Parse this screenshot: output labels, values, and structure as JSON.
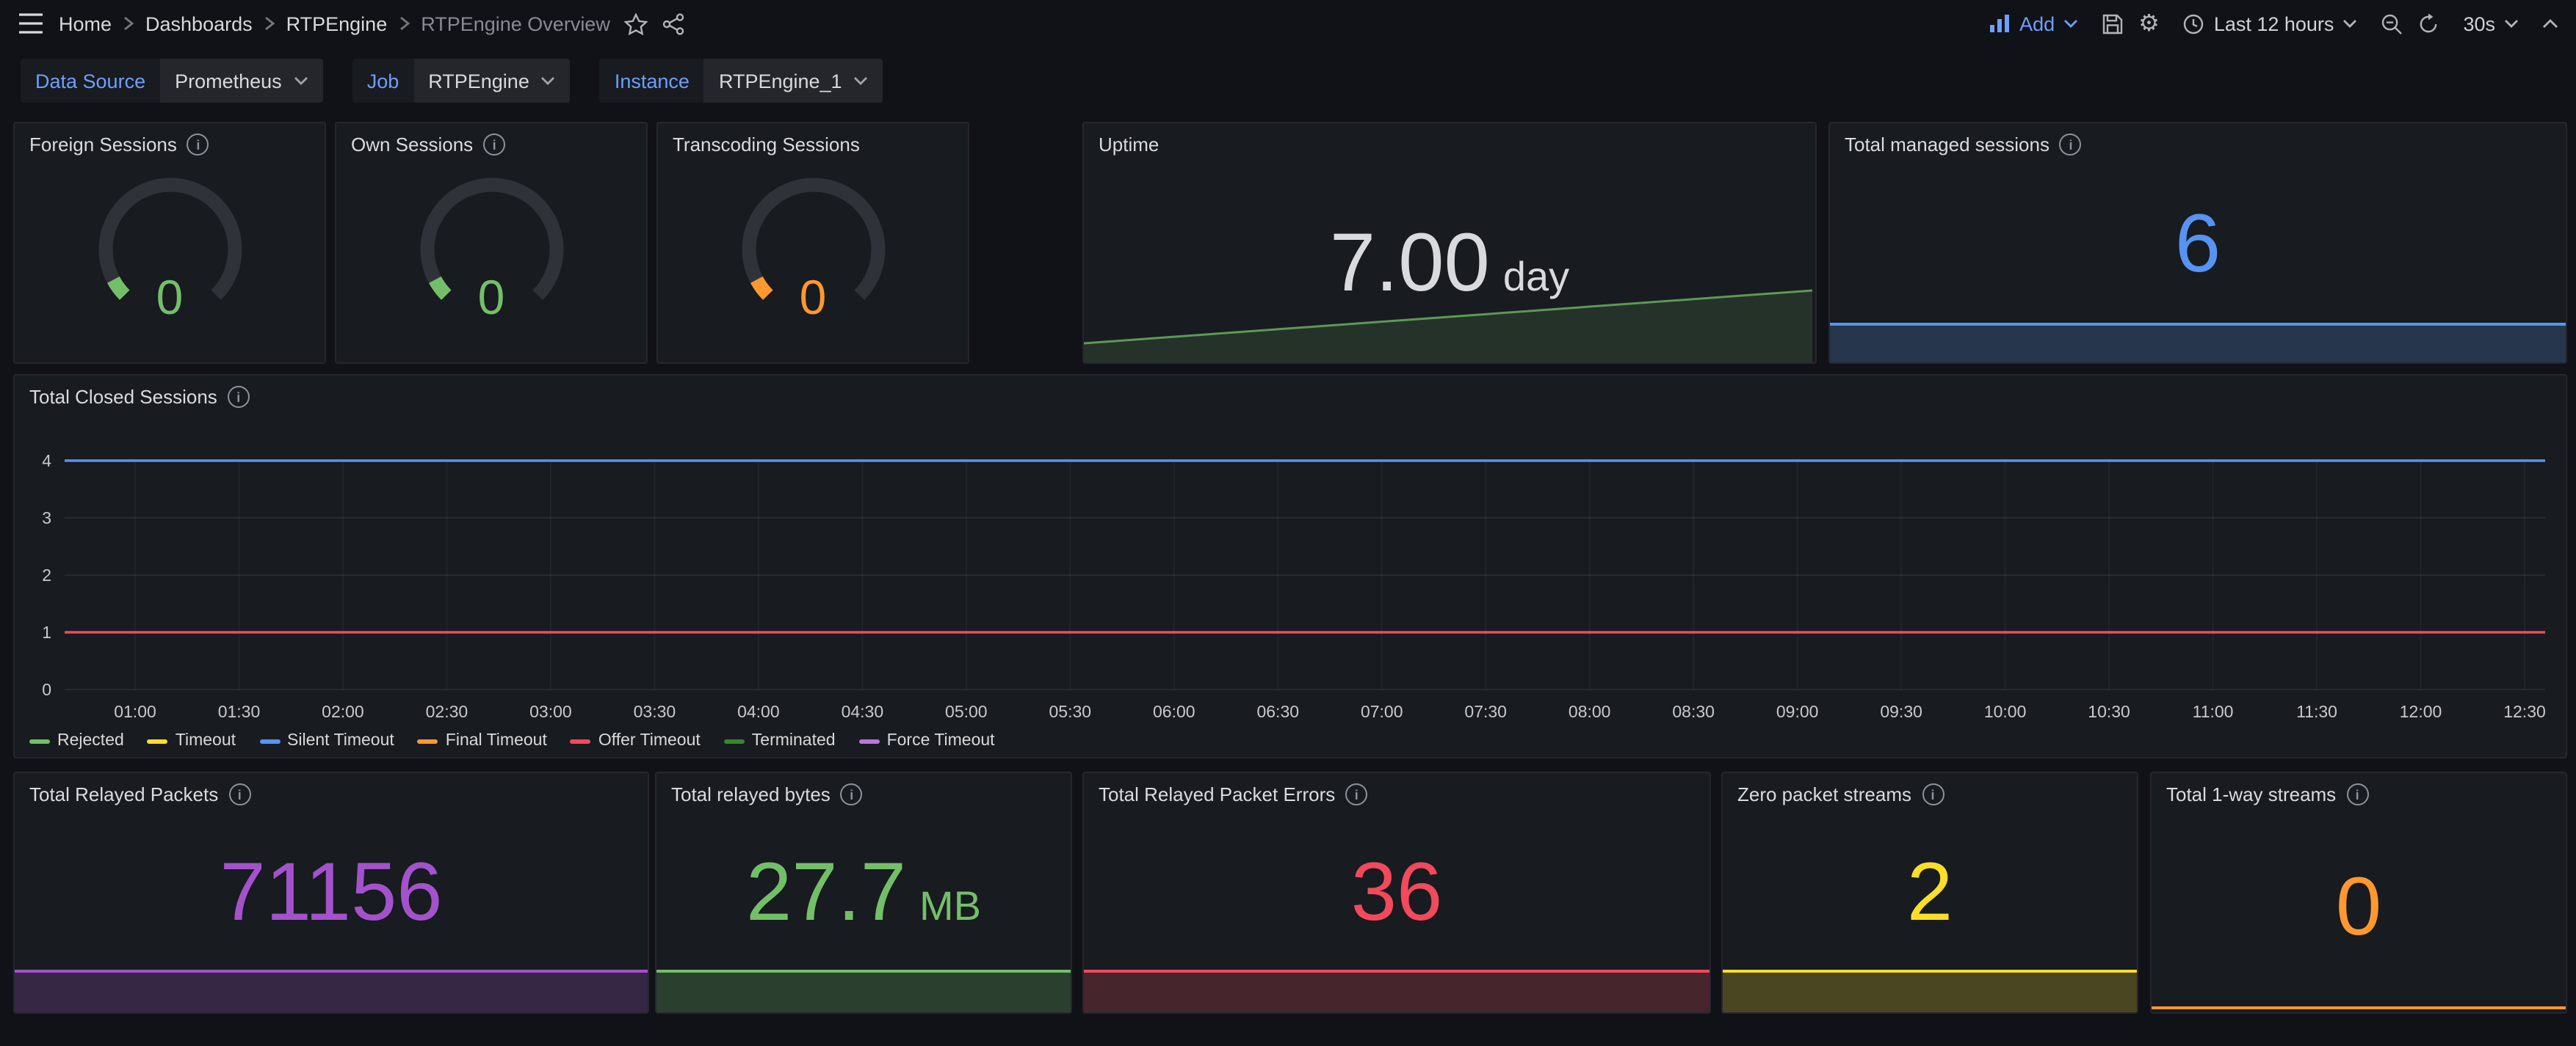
{
  "colors": {
    "accent": "#6e9fff",
    "page_bg": "#111217",
    "panel_bg": "#181b1f"
  },
  "topnav": {
    "breadcrumbs": [
      {
        "label": "Home"
      },
      {
        "label": "Dashboards"
      },
      {
        "label": "RTPEngine"
      },
      {
        "label": "RTPEngine Overview"
      }
    ],
    "add_label": "Add",
    "time_range": "Last 12 hours",
    "refresh_interval": "30s"
  },
  "filters": [
    {
      "label": "Data Source",
      "value": "Prometheus"
    },
    {
      "label": "Job",
      "value": "RTPEngine"
    },
    {
      "label": "Instance",
      "value": "RTPEngine_1"
    }
  ],
  "stat_panels": {
    "foreign_sessions": {
      "title": "Foreign Sessions",
      "value": "0",
      "color": "#73bf69"
    },
    "own_sessions": {
      "title": "Own Sessions",
      "value": "0",
      "color": "#73bf69"
    },
    "transcoding_sessions": {
      "title": "Transcoding Sessions",
      "value": "0",
      "color": "#ff9830"
    },
    "uptime": {
      "title": "Uptime",
      "value": "7.00",
      "unit": "day",
      "text_color": "#d9dade",
      "trend_color": "#73bf69"
    },
    "managed_sessions": {
      "title": "Total managed sessions",
      "value": "6",
      "color": "#5794f2"
    },
    "relayed_packets": {
      "title": "Total Relayed Packets",
      "value": "71156",
      "color": "#a352cc"
    },
    "relayed_bytes": {
      "title": "Total relayed bytes",
      "value": "27.7",
      "unit": "MB",
      "color": "#73bf69"
    },
    "packet_errors": {
      "title": "Total Relayed Packet Errors",
      "value": "36",
      "color": "#f2495c"
    },
    "zero_packet_streams": {
      "title": "Zero packet streams",
      "value": "2",
      "color": "#fade2a"
    },
    "one_way_streams": {
      "title": "Total 1-way streams",
      "value": "0",
      "color": "#ff9830"
    }
  },
  "chart_data": {
    "type": "line",
    "title": "Total Closed Sessions",
    "x": [
      "01:00",
      "01:30",
      "02:00",
      "02:30",
      "03:00",
      "03:30",
      "04:00",
      "04:30",
      "05:00",
      "05:30",
      "06:00",
      "06:30",
      "07:00",
      "07:30",
      "08:00",
      "08:30",
      "09:00",
      "09:30",
      "10:00",
      "10:30",
      "11:00",
      "11:30",
      "12:00",
      "12:30"
    ],
    "ylim": [
      0,
      4
    ],
    "yticks": [
      0,
      1,
      2,
      3,
      4
    ],
    "grid": true,
    "legend_position": "bottom",
    "series": [
      {
        "name": "Rejected",
        "color": "#73bf69",
        "value": 0
      },
      {
        "name": "Timeout",
        "color": "#fade2a",
        "value": 0
      },
      {
        "name": "Silent Timeout",
        "color": "#5794f2",
        "value": 4
      },
      {
        "name": "Final Timeout",
        "color": "#ff9830",
        "value": 0
      },
      {
        "name": "Offer Timeout",
        "color": "#f2495c",
        "value": 1
      },
      {
        "name": "Terminated",
        "color": "#37872d",
        "value": 0
      },
      {
        "name": "Force Timeout",
        "color": "#b877d9",
        "value": 0
      }
    ]
  }
}
